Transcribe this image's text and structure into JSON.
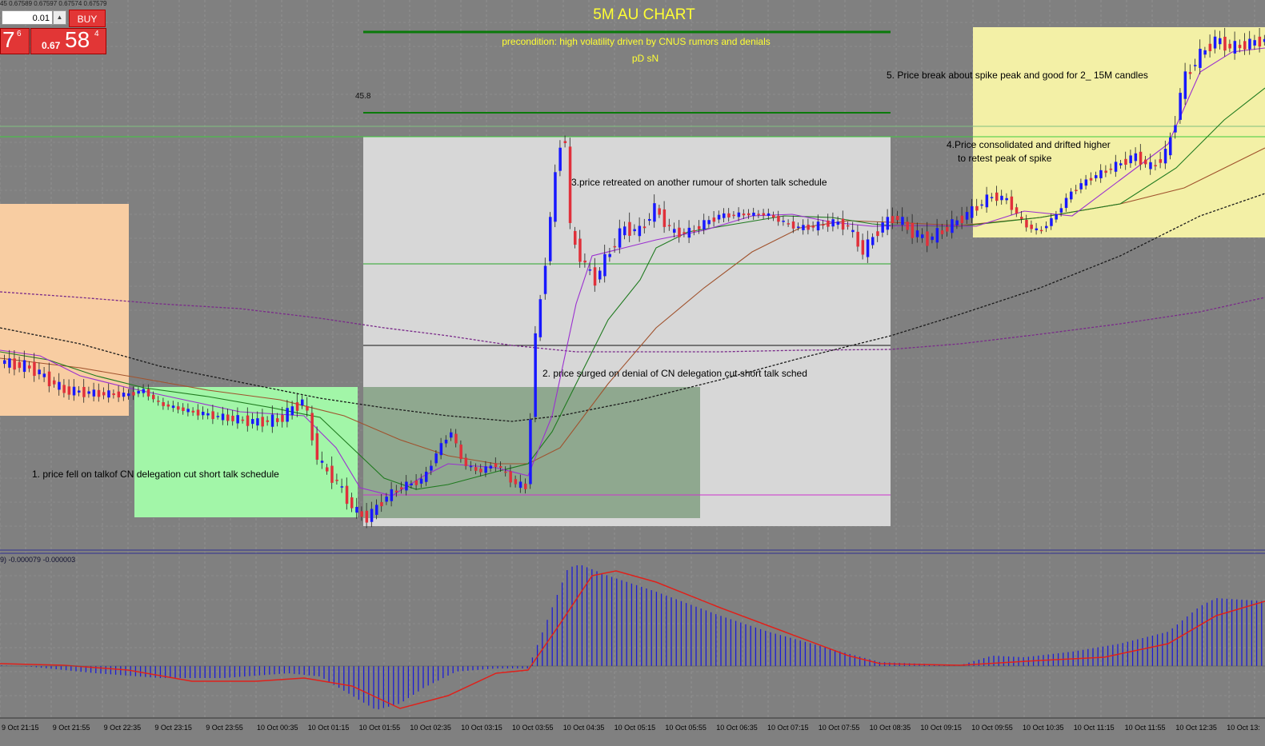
{
  "chart": {
    "title": "5M AU CHART",
    "precondition": "precondition: high volatility driven by CNUS rumors and denials",
    "sub_note": "pD sN",
    "level_label": "45.8",
    "annotations": [
      "1. price fell on talkof CN delegation cut short talk schedule",
      "2. price surged on denial of CN delegation cut short talk sched",
      "3.price retreated on another rumour of shorten talk schedule",
      "4.Price consolidated and drifted higher",
      "to retest peak of spike",
      "5. Price break about spike peak and good for 2_ 15M candles"
    ],
    "time_labels": [
      "9 Oct 21:15",
      "9 Oct 21:55",
      "9 Oct 22:35",
      "9 Oct 23:15",
      "9 Oct 23:55",
      "10 Oct 00:35",
      "10 Oct 01:15",
      "10 Oct 01:55",
      "10 Oct 02:35",
      "10 Oct 03:15",
      "10 Oct 03:55",
      "10 Oct 04:35",
      "10 Oct 05:15",
      "10 Oct 05:55",
      "10 Oct 06:35",
      "10 Oct 07:15",
      "10 Oct 07:55",
      "10 Oct 08:35",
      "10 Oct 09:15",
      "10 Oct 09:55",
      "10 Oct 10:35",
      "10 Oct 11:15",
      "10 Oct 11:55",
      "10 Oct 12:35",
      "10 Oct 13:"
    ],
    "quote_line": "45  0.67589 0.67597 0.67574 0.67579",
    "macd_label": "9) -0.000079 -0.000003"
  },
  "trade_panel": {
    "lot": "0.01",
    "spin_icon": "spin-up-icon",
    "buy_label": "BUY",
    "sell_tail": "7",
    "sell_sup": "6",
    "buy_small": "0.67",
    "buy_big": "58",
    "buy_sup": "4"
  },
  "colors": {
    "background": "#808080",
    "bull": "#1818ff",
    "bear": "#e0303a",
    "title": "#ffff33"
  }
}
